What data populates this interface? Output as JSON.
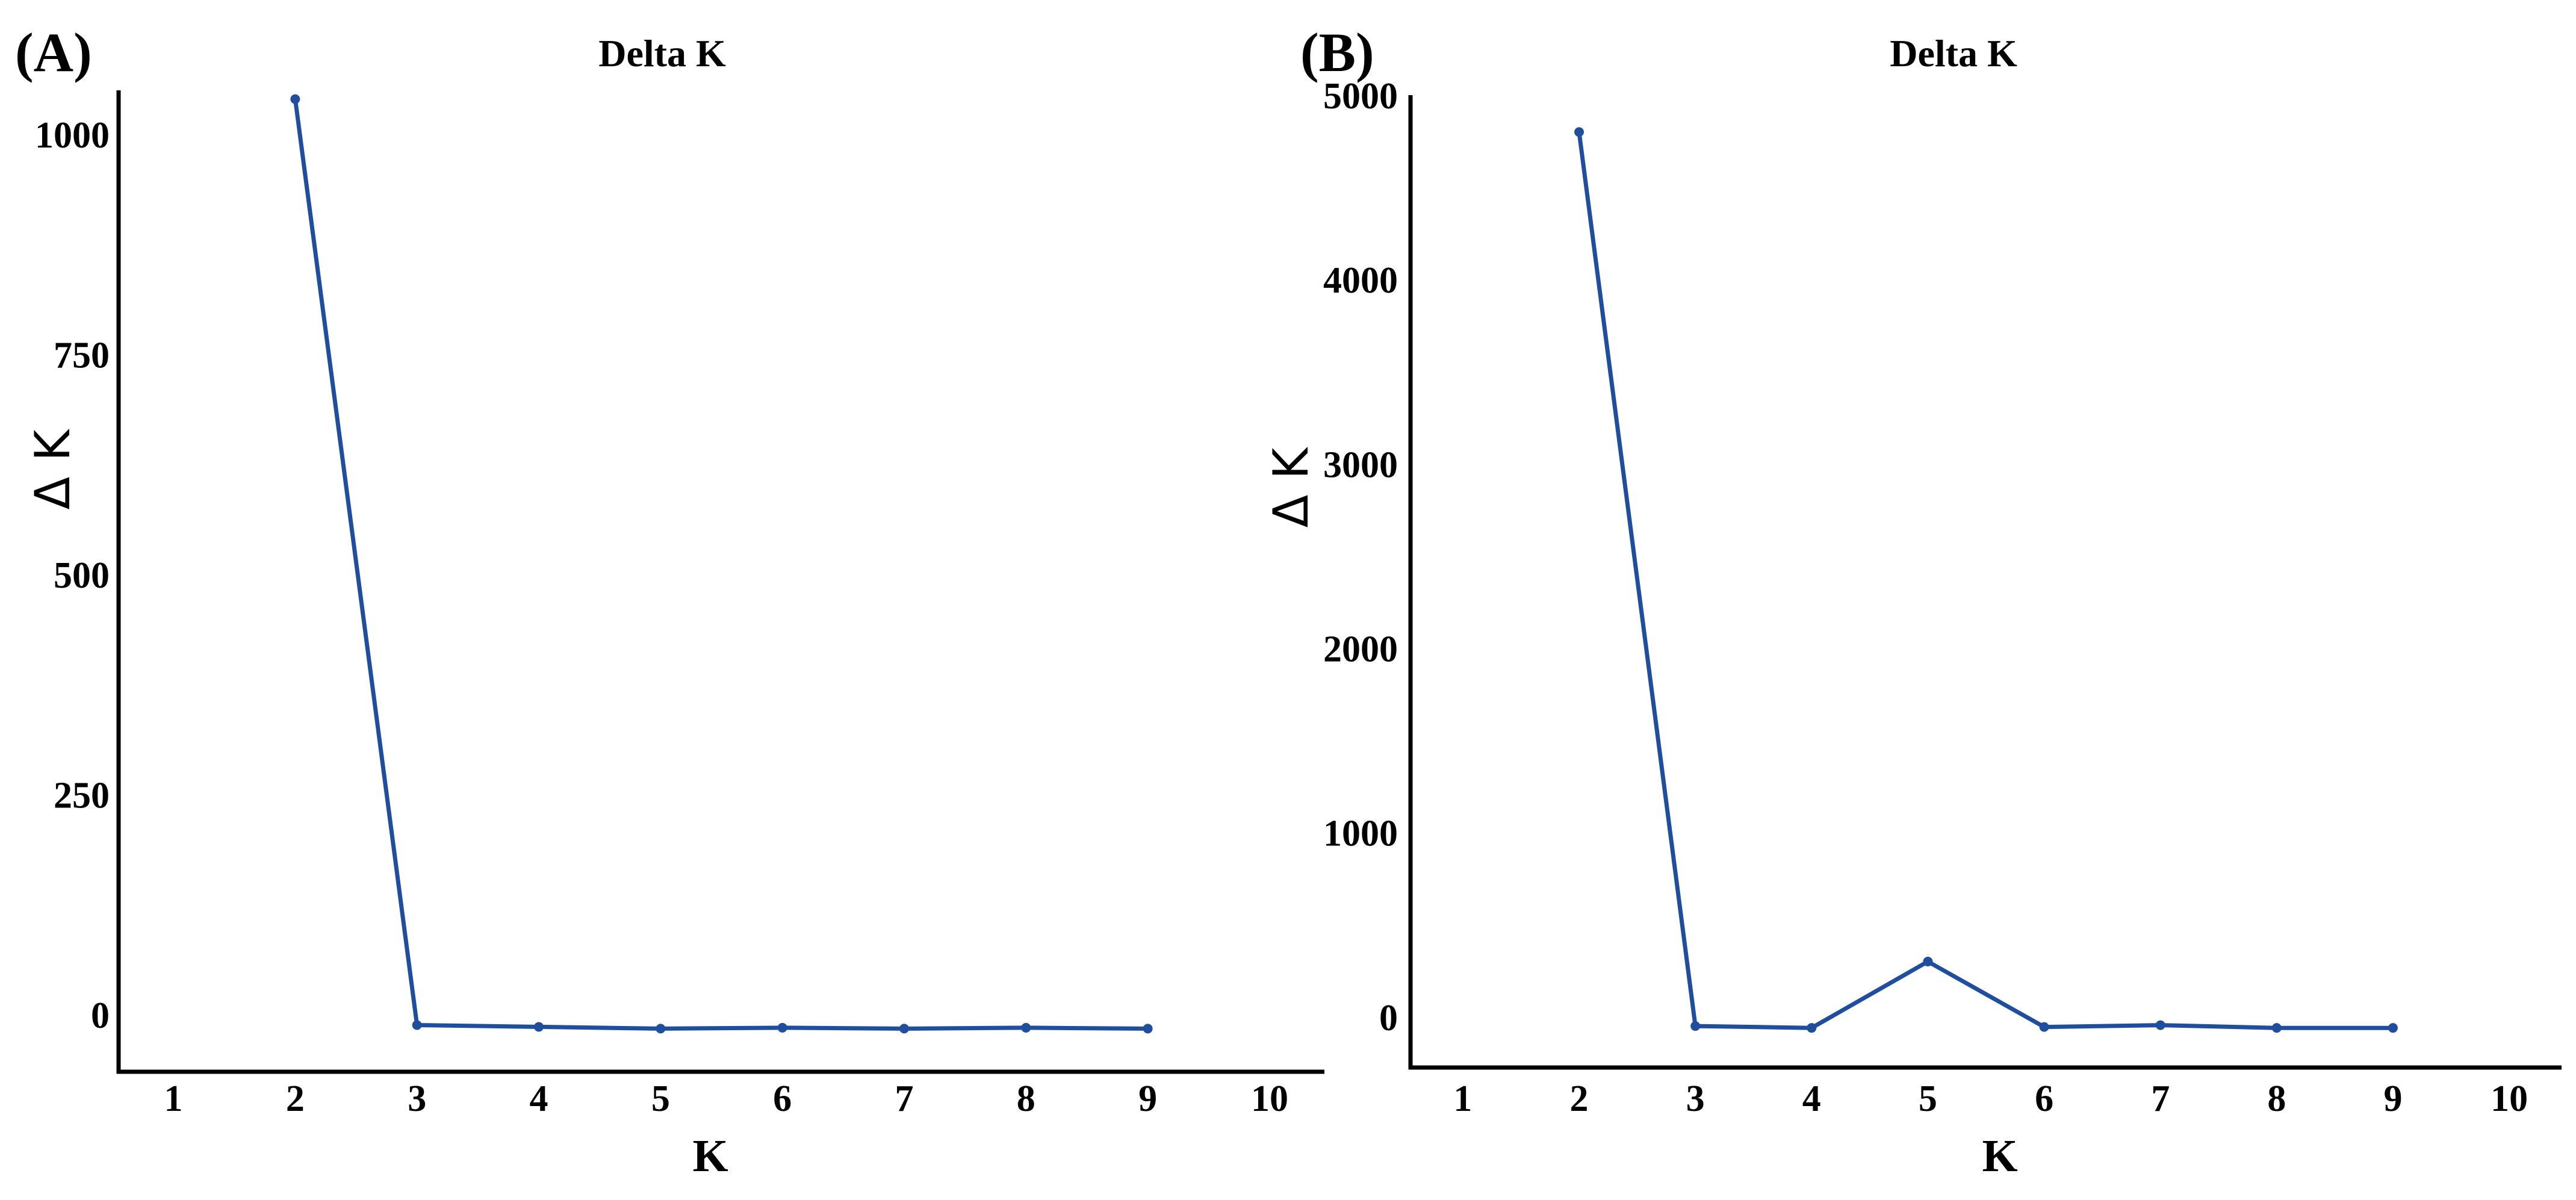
{
  "colors": {
    "line": "#1f4e9c",
    "axis": "#000000"
  },
  "chart_data": [
    {
      "panel_label": "(A)",
      "type": "line",
      "title": "Delta K",
      "xlabel": "K",
      "ylabel": "Δ K",
      "x_ticks": [
        1,
        2,
        3,
        4,
        5,
        6,
        7,
        8,
        9,
        10
      ],
      "y_ticks": [
        0,
        250,
        500,
        750,
        1000
      ],
      "xlim": [
        0.55,
        10.45
      ],
      "ylim": [
        -65,
        1050
      ],
      "grid": false,
      "x": [
        2,
        3,
        4,
        5,
        6,
        7,
        8,
        9
      ],
      "values": [
        1040,
        -12,
        -14,
        -16,
        -15,
        -16,
        -15,
        -16
      ]
    },
    {
      "panel_label": "(B)",
      "type": "line",
      "title": "Delta K",
      "xlabel": "K",
      "ylabel": "Δ K",
      "x_ticks": [
        1,
        2,
        3,
        4,
        5,
        6,
        7,
        8,
        9,
        10
      ],
      "y_ticks": [
        1000,
        2000,
        3000,
        4000,
        5000
      ],
      "y_tick_labels_extra": [
        "0"
      ],
      "xlim": [
        0.55,
        10.45
      ],
      "ylim": [
        -275,
        5000
      ],
      "grid": false,
      "x": [
        2,
        3,
        4,
        5,
        6,
        7,
        8,
        9
      ],
      "values": [
        4800,
        -50,
        -60,
        300,
        -55,
        -45,
        -60,
        -60
      ]
    }
  ]
}
